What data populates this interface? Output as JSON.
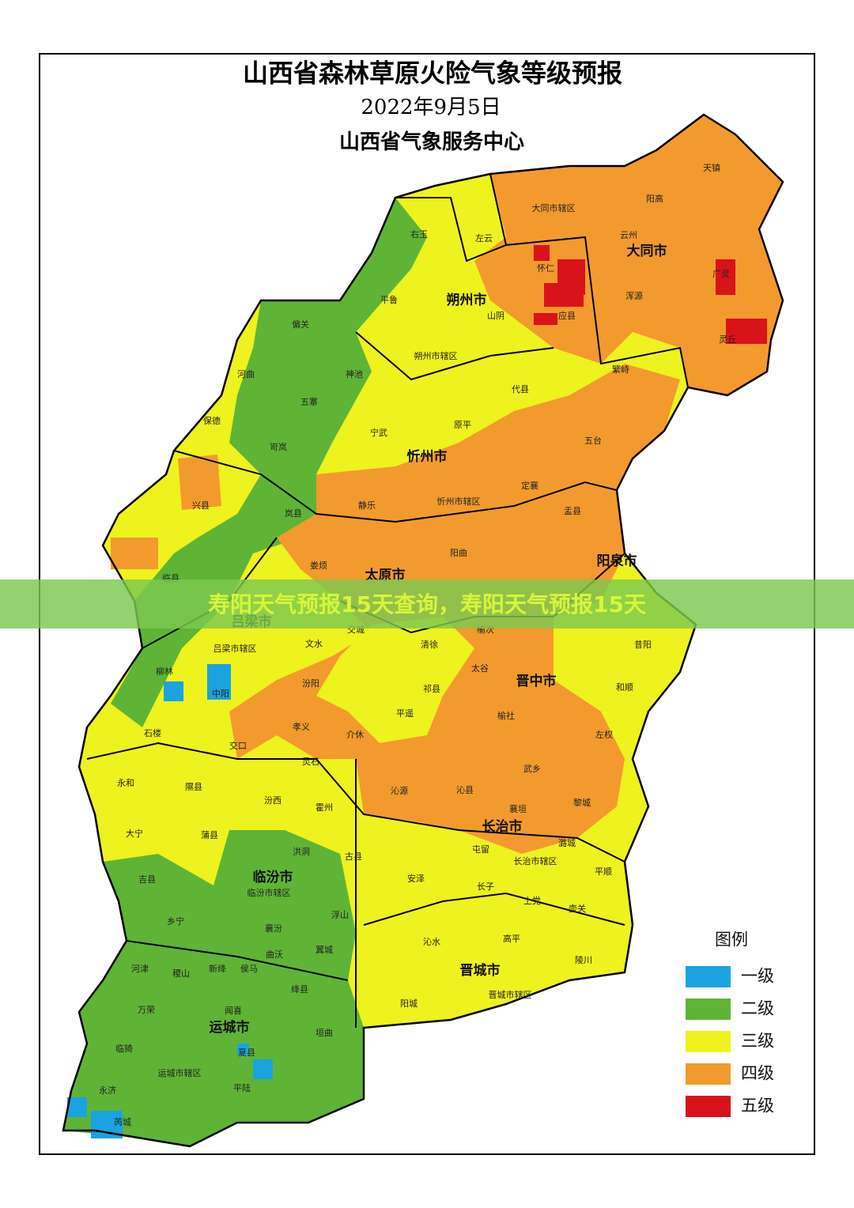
{
  "header": {
    "title": "山西省森林草原火险气象等级预报",
    "date": "2022年9月5日",
    "publisher": "山西省气象服务中心"
  },
  "cities": [
    "大同市",
    "朔州市",
    "忻州市",
    "阳泉市",
    "太原市",
    "吕梁市",
    "晋中市",
    "长治市",
    "临汾市",
    "晋城市",
    "运城市"
  ],
  "counties": [
    "天镇",
    "阳高",
    "大同市辖区",
    "云州",
    "右玉",
    "左云",
    "怀仁",
    "广灵",
    "平鲁",
    "浑源",
    "山阴",
    "应县",
    "偏关",
    "灵丘",
    "朔州市辖区",
    "河曲",
    "神池",
    "繁峙",
    "代县",
    "五寨",
    "保德",
    "原平",
    "宁武",
    "五台",
    "岢岚",
    "静乐",
    "忻州市辖区",
    "定襄",
    "兴县",
    "岚县",
    "盂县",
    "阳曲",
    "娄烦",
    "临县",
    "交城",
    "文水",
    "清徐",
    "榆次",
    "吕梁市辖区",
    "昔阳",
    "太谷",
    "柳林",
    "中阳",
    "汾阳",
    "祁县",
    "和顺",
    "平遥",
    "榆社",
    "石楼",
    "孝义",
    "介休",
    "交口",
    "左权",
    "灵石",
    "武乡",
    "永和",
    "隰县",
    "沁源",
    "沁县",
    "汾西",
    "襄垣",
    "黎城",
    "霍州",
    "大宁",
    "蒲县",
    "潞城",
    "屯留",
    "洪洞",
    "古县",
    "长治市辖区",
    "吉县",
    "安泽",
    "平顺",
    "临汾市辖区",
    "长子",
    "上党",
    "壶关",
    "乡宁",
    "襄汾",
    "浮山",
    "沁水",
    "高平",
    "曲沃",
    "翼城",
    "陵川",
    "河津",
    "稷山",
    "新绛",
    "侯马",
    "绛县",
    "阳城",
    "晋城市辖区",
    "万荣",
    "闻喜",
    "垣曲",
    "临猗",
    "夏县",
    "运城市辖区",
    "永济",
    "平陆",
    "芮城"
  ],
  "legend": {
    "title": "图例",
    "items": [
      {
        "label": "一级",
        "color": "#1aa3e0"
      },
      {
        "label": "二级",
        "color": "#5fb436"
      },
      {
        "label": "三级",
        "color": "#eef21e"
      },
      {
        "label": "四级",
        "color": "#f39a2e"
      },
      {
        "label": "五级",
        "color": "#d9131a"
      }
    ]
  },
  "banner": {
    "text": "寿阳天气预报15天查询，寿阳天气预报15天"
  }
}
